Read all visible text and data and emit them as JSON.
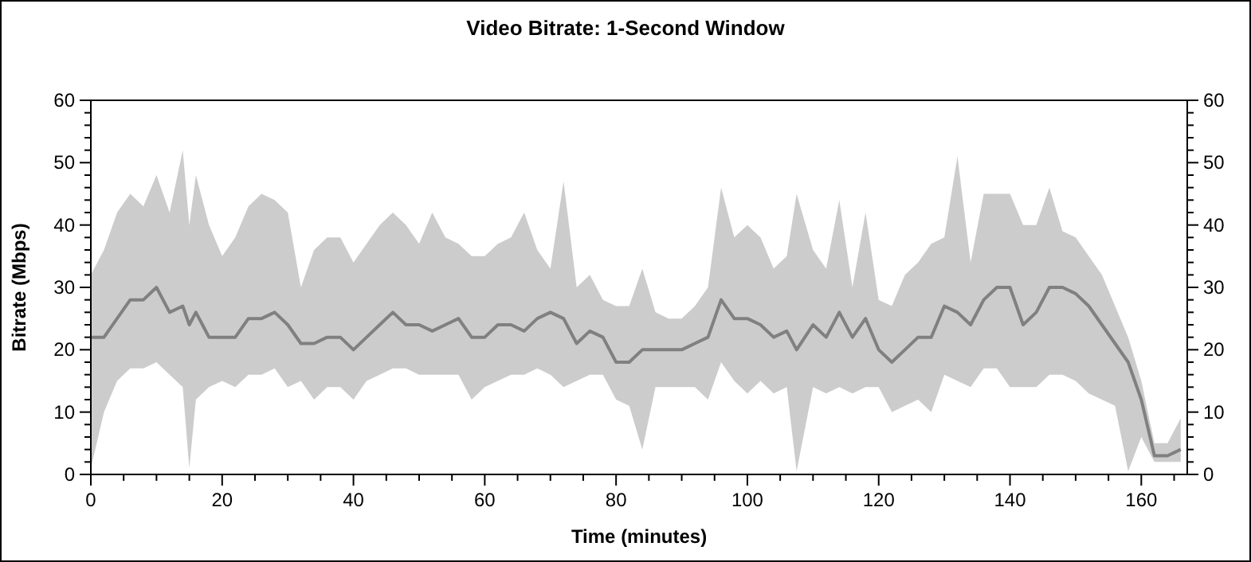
{
  "chart_data": {
    "type": "line",
    "title": "Video Bitrate: 1-Second Window",
    "xlabel": "Time (minutes)",
    "ylabel": "Bitrate (Mbps)",
    "x": [
      0,
      2,
      4,
      6,
      8,
      10,
      12,
      14,
      15,
      16,
      18,
      20,
      22,
      24,
      26,
      28,
      30,
      32,
      34,
      36,
      38,
      40,
      42,
      44,
      46,
      48,
      50,
      52,
      54,
      56,
      58,
      60,
      62,
      64,
      66,
      68,
      70,
      72,
      74,
      76,
      78,
      80,
      82,
      84,
      86,
      88,
      90,
      92,
      94,
      96,
      98,
      100,
      102,
      104,
      106,
      107.5,
      110,
      112,
      114,
      116,
      118,
      120,
      122,
      124,
      126,
      128,
      130,
      132,
      134,
      136,
      138,
      140,
      142,
      144,
      146,
      148,
      150,
      152,
      154,
      156,
      158,
      160,
      162,
      164,
      166
    ],
    "series": [
      {
        "color": "#808080",
        "values": [
          22,
          22,
          25,
          28,
          28,
          30,
          26,
          27,
          24,
          26,
          22,
          22,
          22,
          25,
          25,
          26,
          24,
          21,
          21,
          22,
          22,
          20,
          22,
          24,
          26,
          24,
          24,
          23,
          24,
          25,
          22,
          22,
          24,
          24,
          23,
          25,
          26,
          25,
          21,
          23,
          22,
          18,
          18,
          20,
          20,
          20,
          20,
          21,
          22,
          28,
          25,
          25,
          24,
          22,
          23,
          20,
          24,
          22,
          26,
          22,
          25,
          20,
          18,
          20,
          22,
          22,
          27,
          26,
          24,
          28,
          30,
          30,
          24,
          26,
          30,
          30,
          29,
          27,
          24,
          21,
          18,
          12,
          3,
          3,
          4
        ],
        "lower": [
          1,
          10,
          15,
          17,
          17,
          18,
          16,
          14,
          1,
          12,
          14,
          15,
          14,
          16,
          16,
          17,
          14,
          15,
          12,
          14,
          14,
          12,
          15,
          16,
          17,
          17,
          16,
          16,
          16,
          16,
          12,
          14,
          15,
          16,
          16,
          17,
          16,
          14,
          15,
          16,
          16,
          12,
          11,
          4,
          14,
          14,
          14,
          14,
          12,
          18,
          15,
          13,
          15,
          13,
          14,
          0.5,
          14,
          13,
          14,
          13,
          14,
          14,
          10,
          11,
          12,
          10,
          16,
          15,
          14,
          17,
          17,
          14,
          14,
          14,
          16,
          16,
          15,
          13,
          12,
          11,
          0.5,
          6,
          2,
          2,
          2
        ],
        "upper": [
          32,
          36,
          42,
          45,
          43,
          48,
          42,
          52,
          40,
          48,
          40,
          35,
          38,
          43,
          45,
          44,
          42,
          30,
          36,
          38,
          38,
          34,
          37,
          40,
          42,
          40,
          37,
          42,
          38,
          37,
          35,
          35,
          37,
          38,
          42,
          36,
          33,
          47,
          30,
          32,
          28,
          27,
          27,
          33,
          26,
          25,
          25,
          27,
          30,
          46,
          38,
          40,
          38,
          33,
          35,
          45,
          36,
          33,
          44,
          30,
          42,
          28,
          27,
          32,
          34,
          37,
          38,
          51,
          34,
          45,
          45,
          45,
          40,
          40,
          46,
          39,
          38,
          35,
          32,
          27,
          22,
          15,
          5,
          5,
          9
        ]
      }
    ],
    "xlim": [
      0,
      167
    ],
    "xticks": [
      0,
      {
        "value": 5,
        "label": null
      },
      {
        "value": 10,
        "label": null
      },
      {
        "value": 15,
        "label": null
      },
      20,
      {
        "value": 25,
        "label": null
      },
      {
        "value": 30,
        "label": null
      },
      {
        "value": 35,
        "label": null
      },
      40,
      {
        "value": 45,
        "label": null
      },
      {
        "value": 50,
        "label": null
      },
      {
        "value": 55,
        "label": null
      },
      60,
      {
        "value": 65,
        "label": null
      },
      {
        "value": 70,
        "label": null
      },
      {
        "value": 75,
        "label": null
      },
      80,
      {
        "value": 85,
        "label": null
      },
      {
        "value": 90,
        "label": null
      },
      {
        "value": 95,
        "label": null
      },
      100,
      {
        "value": 105,
        "label": null
      },
      {
        "value": 110,
        "label": null
      },
      {
        "value": 115,
        "label": null
      },
      120,
      {
        "value": 125,
        "label": null
      },
      {
        "value": 130,
        "label": null
      },
      {
        "value": 135,
        "label": null
      },
      140,
      {
        "value": 145,
        "label": null
      },
      {
        "value": 150,
        "label": null
      },
      {
        "value": 155,
        "label": null
      },
      160,
      {
        "value": 165,
        "label": null
      }
    ],
    "ylim": [
      0,
      60
    ],
    "yticks": [
      0,
      {
        "value": 2,
        "label": null
      },
      {
        "value": 4,
        "label": null
      },
      {
        "value": 6,
        "label": null
      },
      {
        "value": 8,
        "label": null
      },
      10,
      {
        "value": 12,
        "label": null
      },
      {
        "value": 14,
        "label": null
      },
      {
        "value": 16,
        "label": null
      },
      {
        "value": 18,
        "label": null
      },
      20,
      {
        "value": 22,
        "label": null
      },
      {
        "value": 24,
        "label": null
      },
      {
        "value": 26,
        "label": null
      },
      {
        "value": 28,
        "label": null
      },
      30,
      {
        "value": 32,
        "label": null
      },
      {
        "value": 34,
        "label": null
      },
      {
        "value": 36,
        "label": null
      },
      {
        "value": 38,
        "label": null
      },
      40,
      {
        "value": 42,
        "label": null
      },
      {
        "value": 44,
        "label": null
      },
      {
        "value": 46,
        "label": null
      },
      {
        "value": 48,
        "label": null
      },
      50,
      {
        "value": 52,
        "label": null
      },
      {
        "value": 54,
        "label": null
      },
      {
        "value": 56,
        "label": null
      },
      {
        "value": 58,
        "label": null
      },
      60
    ],
    "y2lim": [
      0,
      60
    ],
    "y2ticks": [
      0,
      {
        "value": 2,
        "label": null
      },
      {
        "value": 4,
        "label": null
      },
      {
        "value": 6,
        "label": null
      },
      {
        "value": 8,
        "label": null
      },
      10,
      {
        "value": 12,
        "label": null
      },
      {
        "value": 14,
        "label": null
      },
      {
        "value": 16,
        "label": null
      },
      {
        "value": 18,
        "label": null
      },
      20,
      {
        "value": 22,
        "label": null
      },
      {
        "value": 24,
        "label": null
      },
      {
        "value": 26,
        "label": null
      },
      {
        "value": 28,
        "label": null
      },
      30,
      {
        "value": 32,
        "label": null
      },
      {
        "value": 34,
        "label": null
      },
      {
        "value": 36,
        "label": null
      },
      {
        "value": 38,
        "label": null
      },
      40,
      {
        "value": 42,
        "label": null
      },
      {
        "value": 44,
        "label": null
      },
      {
        "value": 46,
        "label": null
      },
      {
        "value": 48,
        "label": null
      },
      50,
      {
        "value": 52,
        "label": null
      },
      {
        "value": 54,
        "label": null
      },
      {
        "value": 56,
        "label": null
      },
      {
        "value": 58,
        "label": null
      },
      60
    ],
    "grid": false
  }
}
